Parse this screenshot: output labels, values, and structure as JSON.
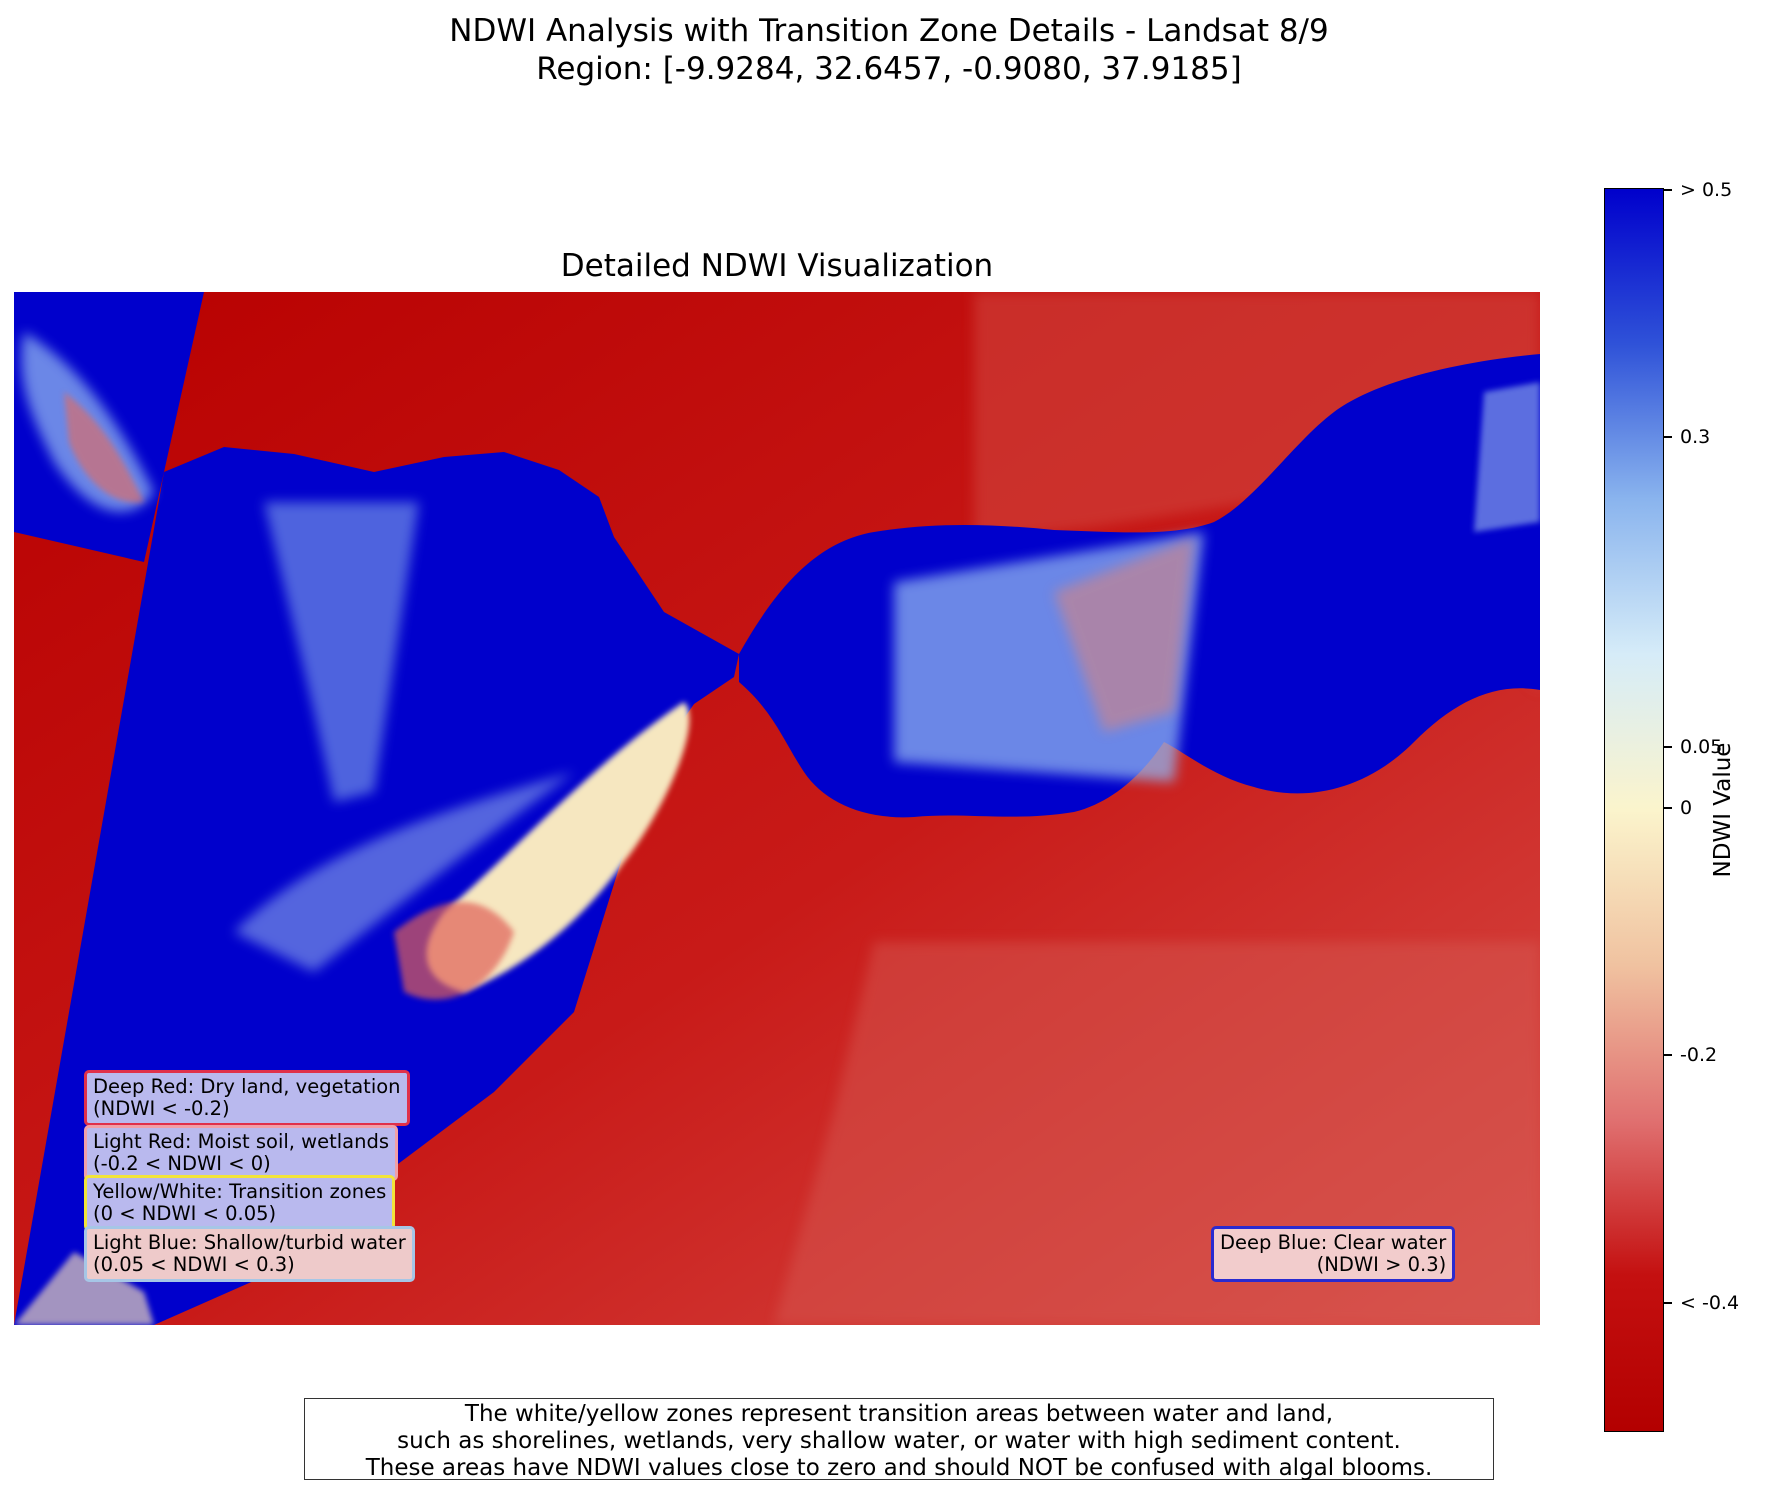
{
  "figure": {
    "title_line1": "NDWI Analysis with Transition Zone Details - Landsat 8/9",
    "title_line2": "Region: [-9.9284, 32.6457, -0.9080, 37.9185]",
    "map_title": "Detailed NDWI Visualization"
  },
  "legend": [
    {
      "line1": "Deep Red: Dry land, vegetation",
      "line2": "(NDWI < -0.2)",
      "border": "#e0304a",
      "bg": "#b9b9ee"
    },
    {
      "line1": "Light Red: Moist soil, wetlands",
      "line2": "(-0.2 < NDWI < 0)",
      "border": "#f0a0a8",
      "bg": "#b9b9ee"
    },
    {
      "line1": "Yellow/White: Transition zones",
      "line2": "(0 < NDWI < 0.05)",
      "border": "#f2e43a",
      "bg": "#b9b9ee"
    },
    {
      "line1": "Light Blue: Shallow/turbid water",
      "line2": "(0.05 < NDWI < 0.3)",
      "border": "#a6c6e6",
      "bg": "#eecaca"
    },
    {
      "line1": "Deep Blue: Clear water",
      "line2": "(NDWI > 0.3)",
      "border": "#2a2ad0",
      "bg": "#f2cccc"
    }
  ],
  "colorbar": {
    "label": "NDWI Value",
    "ticks": [
      "> 0.5",
      "0.3",
      "0.05",
      "0",
      "-0.2",
      "< -0.4"
    ],
    "colors": [
      "#0000cc",
      "#2f52d8",
      "#8ab4ee",
      "#d6ecf8",
      "#fbf4cc",
      "#f0c2a0",
      "#e07070",
      "#c41010",
      "#b30000"
    ]
  },
  "note": {
    "line1": "The white/yellow zones represent transition areas between water and land,",
    "line2": "such as shorelines, wetlands, very shallow water, or water with high sediment content.",
    "line3": "These areas have NDWI values close to zero and should NOT be confused with algal blooms."
  },
  "map_colors": {
    "land_dark": "#bd0000",
    "land_light": "#d23a36",
    "water": "#0000cc",
    "shallow": "#8fb4f0",
    "transition": "#f6e7c0"
  }
}
